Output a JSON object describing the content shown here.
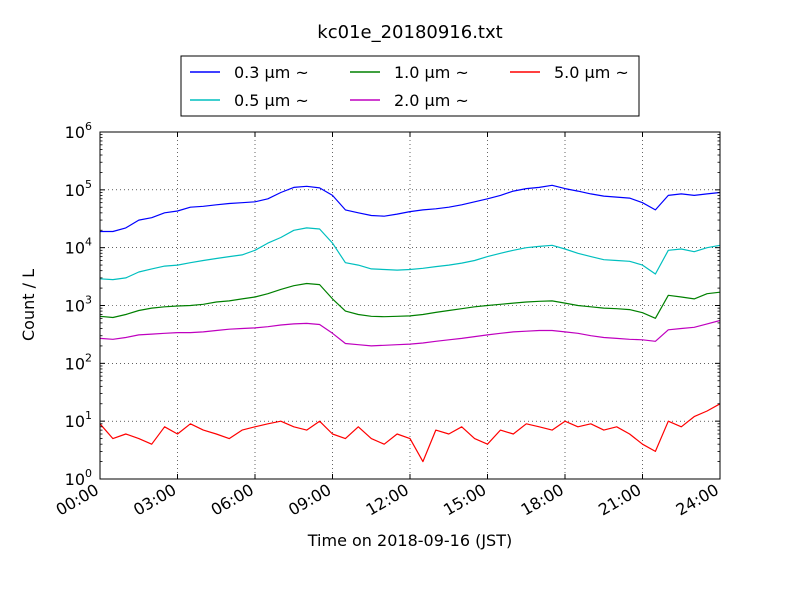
{
  "chart_data": {
    "type": "line",
    "title": "kc01e_20180916.txt",
    "xlabel": "Time on 2018-09-16 (JST)",
    "ylabel": "Count / L",
    "y_scale": "log",
    "ylim": [
      1,
      1000000
    ],
    "xlim": [
      "00:00",
      "24:00"
    ],
    "grid": true,
    "legend_position": "top-center",
    "x_ticks": [
      "00:00",
      "03:00",
      "06:00",
      "09:00",
      "12:00",
      "15:00",
      "18:00",
      "21:00",
      "24:00"
    ],
    "y_ticks": [
      {
        "base": "10",
        "exp": "0"
      },
      {
        "base": "10",
        "exp": "1"
      },
      {
        "base": "10",
        "exp": "2"
      },
      {
        "base": "10",
        "exp": "3"
      },
      {
        "base": "10",
        "exp": "4"
      },
      {
        "base": "10",
        "exp": "5"
      },
      {
        "base": "10",
        "exp": "6"
      }
    ],
    "x_hours": [
      0,
      0.5,
      1,
      1.5,
      2,
      2.5,
      3,
      3.5,
      4,
      4.5,
      5,
      5.5,
      6,
      6.5,
      7,
      7.5,
      8,
      8.5,
      9,
      9.5,
      10,
      10.5,
      11,
      11.5,
      12,
      12.5,
      13,
      13.5,
      14,
      14.5,
      15,
      15.5,
      16,
      16.5,
      17,
      17.5,
      18,
      18.5,
      19,
      19.5,
      20,
      20.5,
      21,
      21.5,
      22,
      22.5,
      23,
      23.5,
      24
    ],
    "series": [
      {
        "name": "0.3",
        "color": "#0000ff",
        "values": [
          19000,
          19000,
          22000,
          30000,
          33000,
          40000,
          43000,
          50000,
          52000,
          55000,
          58000,
          60000,
          62000,
          70000,
          90000,
          110000,
          115000,
          108000,
          80000,
          45000,
          40000,
          36000,
          35000,
          38000,
          42000,
          45000,
          47000,
          50000,
          55000,
          62000,
          70000,
          80000,
          95000,
          105000,
          110000,
          120000,
          105000,
          95000,
          85000,
          78000,
          75000,
          72000,
          60000,
          45000,
          80000,
          85000,
          80000,
          85000,
          90000
        ]
      },
      {
        "name": "0.5",
        "color": "#00bfbf",
        "values": [
          2900,
          2800,
          3000,
          3800,
          4300,
          4800,
          5000,
          5500,
          6000,
          6500,
          7000,
          7500,
          9000,
          12000,
          15000,
          20000,
          22000,
          21000,
          12000,
          5500,
          5000,
          4300,
          4200,
          4100,
          4200,
          4400,
          4700,
          5000,
          5400,
          6000,
          7000,
          8000,
          9000,
          10000,
          10500,
          11000,
          9500,
          8000,
          7000,
          6200,
          6000,
          5800,
          5000,
          3500,
          9000,
          9500,
          8500,
          10000,
          11000
        ]
      },
      {
        "name": "1.0",
        "color": "#008000",
        "values": [
          650,
          620,
          700,
          820,
          900,
          950,
          980,
          1000,
          1050,
          1150,
          1200,
          1300,
          1400,
          1600,
          1900,
          2200,
          2400,
          2300,
          1300,
          800,
          700,
          650,
          640,
          650,
          660,
          700,
          760,
          820,
          880,
          950,
          1000,
          1050,
          1100,
          1150,
          1180,
          1200,
          1100,
          1000,
          950,
          900,
          880,
          850,
          750,
          600,
          1500,
          1400,
          1300,
          1600,
          1700
        ]
      },
      {
        "name": "2.0",
        "color": "#bf00bf",
        "values": [
          270,
          260,
          280,
          310,
          320,
          330,
          340,
          340,
          350,
          370,
          390,
          400,
          410,
          430,
          460,
          480,
          490,
          470,
          330,
          220,
          210,
          200,
          205,
          210,
          215,
          225,
          240,
          255,
          270,
          290,
          310,
          330,
          350,
          360,
          370,
          370,
          350,
          330,
          300,
          280,
          270,
          260,
          255,
          240,
          380,
          400,
          420,
          480,
          550
        ]
      },
      {
        "name": "5.0",
        "color": "#ff0000",
        "values": [
          9,
          5,
          6,
          5,
          4,
          8,
          6,
          9,
          7,
          6,
          5,
          7,
          8,
          9,
          10,
          8,
          7,
          10,
          6,
          5,
          8,
          5,
          4,
          6,
          5,
          2,
          7,
          6,
          8,
          5,
          4,
          7,
          6,
          9,
          8,
          7,
          10,
          8,
          9,
          7,
          8,
          6,
          4,
          3,
          10,
          8,
          12,
          15,
          20
        ]
      }
    ]
  },
  "legend_unit": "μm ~"
}
